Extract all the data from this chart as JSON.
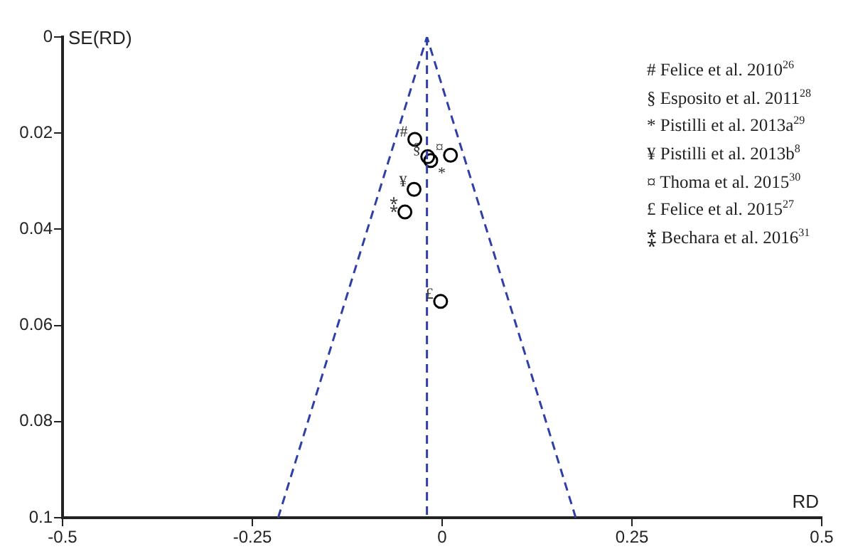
{
  "chart_data": {
    "type": "scatter",
    "xlabel": "RD",
    "ylabel": "SE(RD)",
    "xlim": [
      -0.5,
      0.5
    ],
    "xticks": [
      -0.5,
      -0.25,
      0,
      0.25,
      0.5
    ],
    "ylim": [
      0.1,
      0
    ],
    "yticks": [
      0,
      0.02,
      0.04,
      0.06,
      0.08,
      0.1
    ],
    "grid": false,
    "legend": false,
    "marker": "circle",
    "series": [
      {
        "color": "#000000",
        "x": [
          -0.036,
          -0.019,
          -0.015,
          0.011,
          -0.037,
          -0.049,
          -0.002
        ],
        "values": [
          0.0213,
          0.0249,
          0.0257,
          0.0246,
          0.0317,
          0.0364,
          0.055
        ]
      },
      {
        "type": "line",
        "color": "#2e3fa8",
        "line_style": "dashed",
        "marker": "none",
        "x": [
          -0.216,
          -0.02
        ],
        "values": [
          0.1,
          0
        ]
      },
      {
        "type": "line",
        "color": "#2e3fa8",
        "line_style": "dashed",
        "marker": "none",
        "x": [
          0.176,
          -0.02
        ],
        "values": [
          0.1,
          0
        ]
      }
    ],
    "ref_lines": [
      {
        "axis": "x",
        "value": -0.02,
        "color": "#2e3fa8",
        "line_style": "dashed"
      }
    ],
    "annotations": [
      {
        "text": "#",
        "x": -0.036,
        "y": 0.0213
      },
      {
        "text": "§",
        "x": -0.019,
        "y": 0.0249
      },
      {
        "text": "*",
        "x": -0.015,
        "y": 0.0257
      },
      {
        "text": "¤",
        "x": 0.011,
        "y": 0.0246
      },
      {
        "text": "¥",
        "x": -0.037,
        "y": 0.0317
      },
      {
        "text": "⁑",
        "x": -0.049,
        "y": 0.0364
      },
      {
        "text": "£",
        "x": -0.002,
        "y": 0.055
      },
      "# Felice et al. 2010$^{26}$",
      "§ Esposito et al. 2011$^{28}$",
      "* Pistilli et al. 2013a$^{29}$",
      "¥ Pistilli et al. 2013b$^{8}$",
      "¤ Thoma et al. 2015$^{30}$",
      "£ Felice et al. 2015$^{27}$",
      "⁑ Bechara et al. 2016$^{31}$"
    ]
  }
}
